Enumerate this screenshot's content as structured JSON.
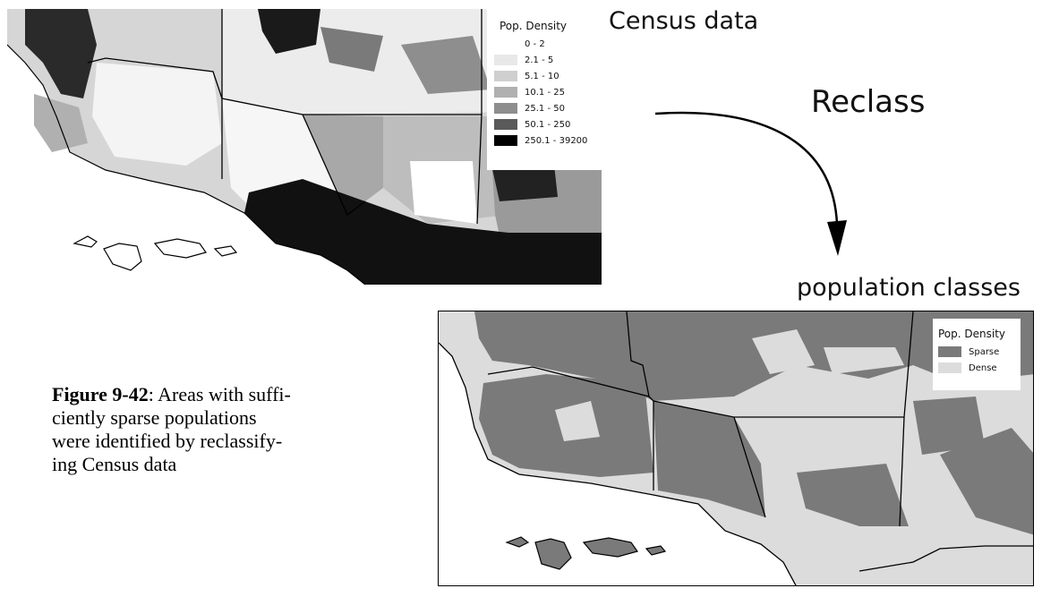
{
  "top_label": "Census data",
  "arrow_label": "Reclass",
  "bottom_label": "population classes",
  "census_map": {
    "legend_title": "Pop. Density",
    "legend_items": [
      {
        "label": "0 -   2",
        "color": "#ffffff"
      },
      {
        "label": "2.1 -   5",
        "color": "#e8e8e8"
      },
      {
        "label": "5.1 -  10",
        "color": "#cfcfcf"
      },
      {
        "label": "10.1 -  25",
        "color": "#b0b0b0"
      },
      {
        "label": "25.1 -  50",
        "color": "#8e8e8e"
      },
      {
        "label": "50.1 -  250",
        "color": "#5a5a5a"
      },
      {
        "label": "250.1 - 39200",
        "color": "#000000"
      }
    ]
  },
  "classes_map": {
    "legend_title": "Pop. Density",
    "legend_items": [
      {
        "label": "Sparse",
        "color": "#7a7a7a"
      },
      {
        "label": "Dense",
        "color": "#dcdcdc"
      }
    ]
  },
  "caption": {
    "figure_label": "Figure 9-42",
    "text": ": Areas with suffi-ciently sparse populations were identified by reclassify-ing Census data",
    "lines": [
      "Areas with suffi-",
      "ciently sparse populations",
      "were identified by reclassify-",
      "ing Census data"
    ]
  }
}
